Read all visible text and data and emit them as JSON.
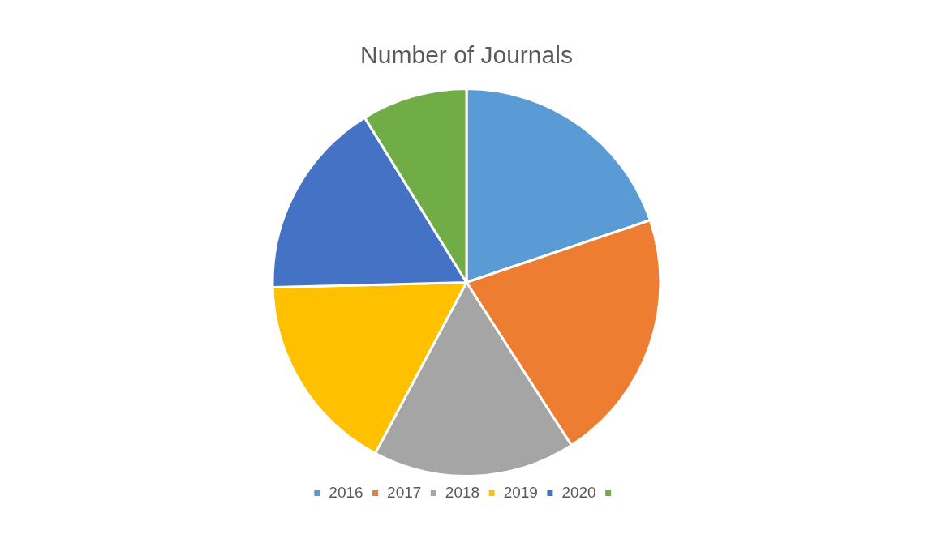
{
  "chart_data": {
    "type": "pie",
    "title": "Number of Journals",
    "categories": [
      "2016",
      "2017",
      "2018",
      "2019",
      "2020",
      null
    ],
    "values": [
      19.8,
      21.1,
      16.9,
      16.8,
      16.6,
      8.8
    ],
    "colors": [
      "#5b9bd5",
      "#ed7d31",
      "#a5a5a5",
      "#ffc000",
      "#4472c4",
      "#70ad47"
    ],
    "legend": "bottom"
  }
}
